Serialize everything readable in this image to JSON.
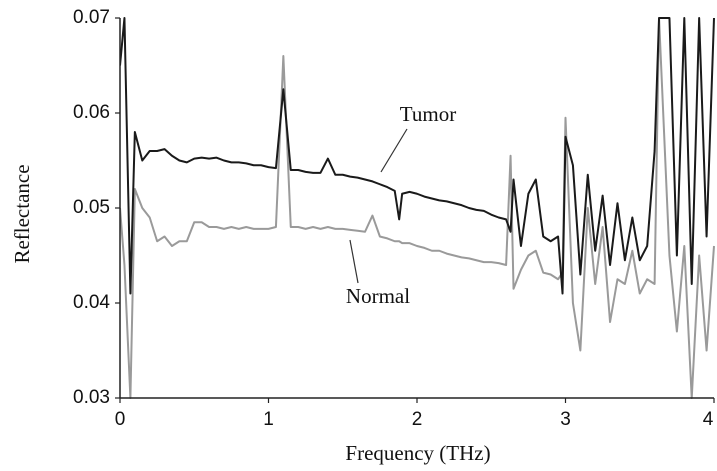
{
  "chart_data": {
    "type": "line",
    "xlabel": "Frequency (THz)",
    "ylabel": "Reflectance",
    "x": [
      0,
      0.03,
      0.07,
      0.1,
      0.15,
      0.2,
      0.25,
      0.3,
      0.35,
      0.4,
      0.45,
      0.5,
      0.55,
      0.6,
      0.65,
      0.7,
      0.75,
      0.8,
      0.85,
      0.9,
      0.95,
      1.0,
      1.05,
      1.1,
      1.15,
      1.2,
      1.25,
      1.3,
      1.35,
      1.4,
      1.45,
      1.5,
      1.55,
      1.6,
      1.65,
      1.7,
      1.75,
      1.8,
      1.85,
      1.88,
      1.9,
      1.95,
      2.0,
      2.05,
      2.1,
      2.15,
      2.2,
      2.25,
      2.3,
      2.35,
      2.4,
      2.45,
      2.5,
      2.55,
      2.6,
      2.63,
      2.65,
      2.7,
      2.75,
      2.8,
      2.85,
      2.9,
      2.95,
      2.98,
      3.0,
      3.05,
      3.1,
      3.15,
      3.2,
      3.25,
      3.3,
      3.35,
      3.4,
      3.45,
      3.5,
      3.55,
      3.6,
      3.63,
      3.7,
      3.75,
      3.8,
      3.85,
      3.9,
      3.95,
      4.0
    ],
    "series": [
      {
        "name": "Tumor",
        "color": "#1a1a1a",
        "values": [
          0.065,
          0.07,
          0.041,
          0.058,
          0.055,
          0.056,
          0.056,
          0.0562,
          0.0555,
          0.055,
          0.0548,
          0.0552,
          0.0553,
          0.0552,
          0.0553,
          0.055,
          0.0548,
          0.0548,
          0.0547,
          0.0545,
          0.0545,
          0.0543,
          0.0542,
          0.0625,
          0.054,
          0.054,
          0.0538,
          0.0537,
          0.0537,
          0.0552,
          0.0535,
          0.0535,
          0.0533,
          0.0532,
          0.053,
          0.0528,
          0.0525,
          0.0522,
          0.0518,
          0.0488,
          0.0515,
          0.0517,
          0.0515,
          0.0512,
          0.051,
          0.0508,
          0.0507,
          0.0505,
          0.0503,
          0.05,
          0.0498,
          0.0497,
          0.0493,
          0.049,
          0.0488,
          0.0475,
          0.053,
          0.046,
          0.0515,
          0.053,
          0.047,
          0.0465,
          0.047,
          0.041,
          0.0575,
          0.0545,
          0.043,
          0.0535,
          0.0455,
          0.0513,
          0.044,
          0.0505,
          0.0445,
          0.049,
          0.0445,
          0.046,
          0.056,
          0.07,
          0.07,
          0.045,
          0.07,
          0.042,
          0.07,
          0.047,
          0.07
        ]
      },
      {
        "name": "Normal",
        "color": "#9a9a9a",
        "values": [
          0.05,
          0.044,
          0.03,
          0.052,
          0.05,
          0.049,
          0.0465,
          0.047,
          0.046,
          0.0465,
          0.0465,
          0.0485,
          0.0485,
          0.048,
          0.048,
          0.0478,
          0.048,
          0.0478,
          0.048,
          0.0478,
          0.0478,
          0.0478,
          0.048,
          0.066,
          0.048,
          0.048,
          0.0478,
          0.048,
          0.0478,
          0.048,
          0.0478,
          0.0478,
          0.0477,
          0.0476,
          0.0475,
          0.0492,
          0.047,
          0.0468,
          0.0465,
          0.0465,
          0.0463,
          0.0463,
          0.046,
          0.0458,
          0.0455,
          0.0455,
          0.0452,
          0.045,
          0.0448,
          0.0447,
          0.0445,
          0.0443,
          0.0443,
          0.0442,
          0.044,
          0.0555,
          0.0415,
          0.0435,
          0.045,
          0.0455,
          0.0432,
          0.043,
          0.0425,
          0.0432,
          0.0595,
          0.04,
          0.035,
          0.05,
          0.042,
          0.048,
          0.038,
          0.0425,
          0.042,
          0.0455,
          0.041,
          0.0425,
          0.042,
          0.07,
          0.045,
          0.037,
          0.046,
          0.03,
          0.045,
          0.035,
          0.046
        ]
      }
    ],
    "xlim": [
      0,
      4
    ],
    "xticks": [
      0,
      1,
      2,
      3,
      4
    ],
    "ylim": [
      0.03,
      0.07
    ],
    "yticks": [
      0.03,
      0.04,
      0.05,
      0.06,
      0.07
    ]
  }
}
